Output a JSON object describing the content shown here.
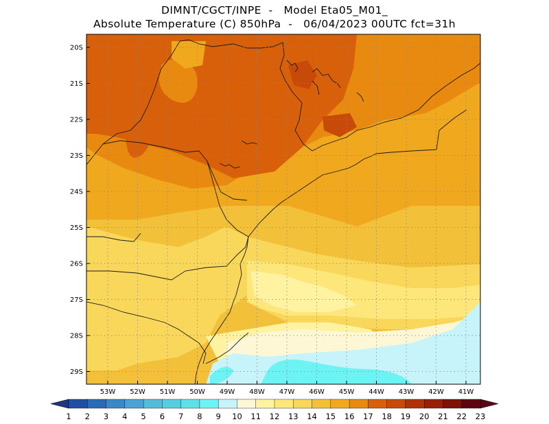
{
  "header": {
    "line1": "DIMNT/CGCT/INPE  -   Model Eta05_M01_",
    "line2": "Absolute Temperature (C) 850hPa  -   06/04/2023 00UTC fct=31h"
  },
  "map": {
    "lat_labels": [
      "20S",
      "21S",
      "22S",
      "23S",
      "24S",
      "25S",
      "26S",
      "27S",
      "28S",
      "29S"
    ],
    "lon_labels": [
      "53W",
      "52W",
      "51W",
      "50W",
      "49W",
      "48W",
      "47W",
      "46W",
      "45W",
      "44W",
      "43W",
      "42W",
      "41W"
    ]
  },
  "colorbar": {
    "labels": [
      "1",
      "2",
      "3",
      "4",
      "5",
      "6",
      "7",
      "8",
      "9",
      "10",
      "11",
      "12",
      "13",
      "14",
      "15",
      "16",
      "17",
      "18",
      "19",
      "20",
      "21",
      "22",
      "23"
    ],
    "colors": [
      "#233a8c",
      "#1e4fa3",
      "#2a6bb8",
      "#3b88c9",
      "#4aa3d4",
      "#52bcd9",
      "#55cfe0",
      "#5fdfe8",
      "#6ef3f4",
      "#c7f4fb",
      "#fdf7d6",
      "#fff2a0",
      "#fde77a",
      "#f8d75a",
      "#f3c03a",
      "#f0a91e",
      "#e98a10",
      "#d8600a",
      "#c74a08",
      "#b03206",
      "#982006",
      "#7d1206",
      "#5e0410"
    ],
    "under_color": "#22357f",
    "over_color": "#5a0716"
  }
}
